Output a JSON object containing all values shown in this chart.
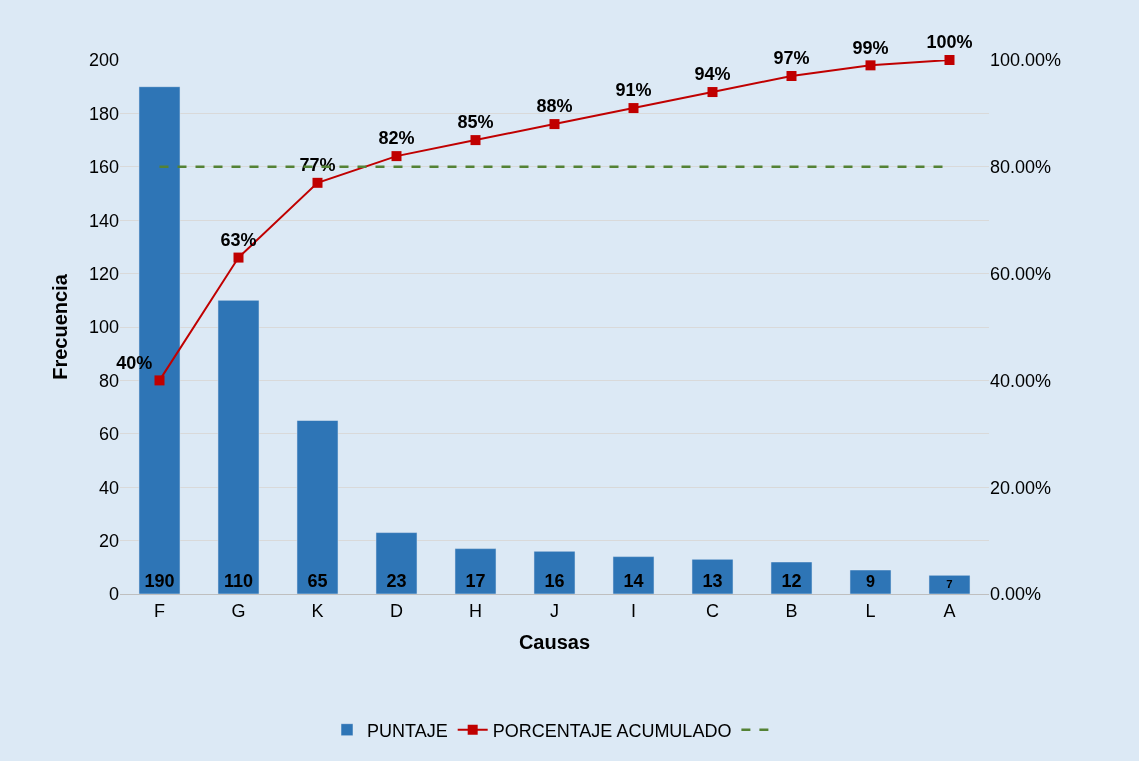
{
  "chart_data": {
    "type": "bar",
    "xlabel": "Causas",
    "ylabel": "Frecuencia",
    "categories": [
      "F",
      "G",
      "K",
      "D",
      "H",
      "J",
      "I",
      "C",
      "B",
      "L",
      "A"
    ],
    "series": [
      {
        "name": "PUNTAJE",
        "color": "#2e75b6",
        "values": [
          190,
          110,
          65,
          23,
          17,
          16,
          14,
          13,
          12,
          9,
          7
        ],
        "value_labels": [
          "190",
          "110",
          "65",
          "23",
          "17",
          "16",
          "14",
          "13",
          "12",
          "9",
          "7"
        ]
      },
      {
        "name": "PORCENTAJE ACUMULADO",
        "type": "line",
        "axis": "y2",
        "color": "#c00000",
        "marker": "square",
        "values": [
          40,
          63,
          77,
          82,
          85,
          88,
          91,
          94,
          97,
          99,
          100
        ],
        "value_labels": [
          "40%",
          "63%",
          "77%",
          "82%",
          "85%",
          "88%",
          "91%",
          "94%",
          "97%",
          "99%",
          "100%"
        ]
      }
    ],
    "ylim": [
      0,
      200
    ],
    "yticks": [
      0,
      20,
      40,
      60,
      80,
      100,
      120,
      140,
      160,
      180,
      200
    ],
    "y2lim": [
      0,
      100
    ],
    "y2ticks": [
      {
        "value": 0,
        "label": "0.00%"
      },
      {
        "value": 20,
        "label": "20.00%"
      },
      {
        "value": 40,
        "label": "40.00%"
      },
      {
        "value": 60,
        "label": "60.00%"
      },
      {
        "value": 80,
        "label": "80.00%"
      },
      {
        "value": 100,
        "label": "100.00%"
      }
    ],
    "ref_lines": [
      {
        "axis": "y2",
        "value": 80,
        "color": "#548235",
        "line_style": "dashed"
      }
    ],
    "grid": "y",
    "legend": "bottom"
  }
}
